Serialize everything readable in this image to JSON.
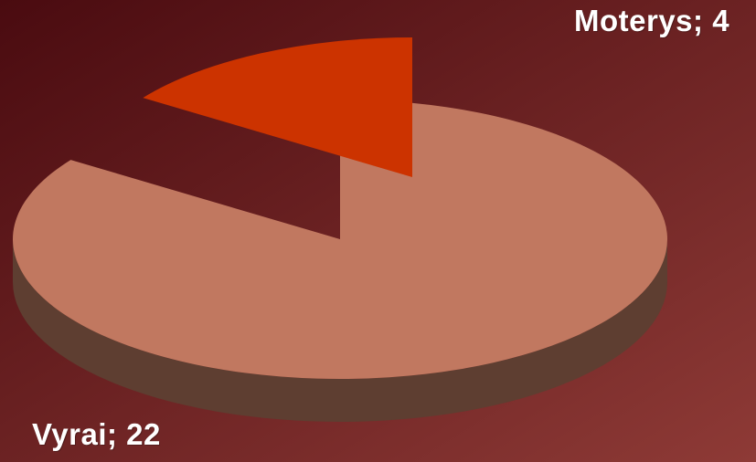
{
  "chart_data": {
    "type": "pie",
    "style": "3d-exploded",
    "slices": [
      {
        "label": "Vyrai",
        "value": 22,
        "display": "Vyrai; 22",
        "color": "#c17860",
        "side_color": "#5e3e31"
      },
      {
        "label": "Moterys",
        "value": 4,
        "display": "Moterys; 4",
        "color": "#cc3300",
        "side_color": "#6a1a00"
      }
    ],
    "background": {
      "from": "#4a0b10",
      "to": "#8e3a36"
    },
    "legend": "none"
  }
}
